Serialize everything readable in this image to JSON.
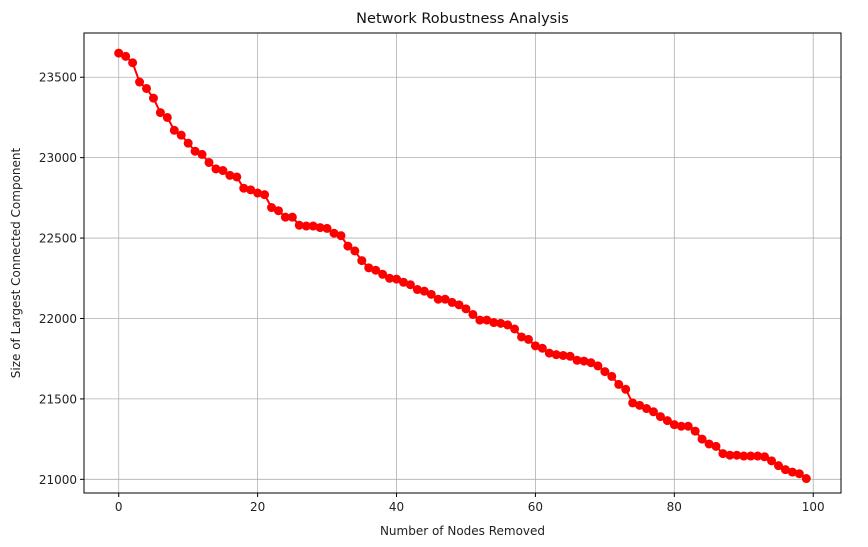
{
  "chart_data": {
    "type": "line",
    "title": "Network Robustness Analysis",
    "xlabel": "Number of Nodes Removed",
    "ylabel": "Size of Largest Connected Component",
    "xlim": [
      -5,
      104
    ],
    "ylim": [
      20915,
      23775
    ],
    "xticks": [
      0,
      20,
      40,
      60,
      80,
      100
    ],
    "yticks": [
      21000,
      21500,
      22000,
      22500,
      23000,
      23500
    ],
    "grid": true,
    "color": "#ff0000",
    "marker": "circle",
    "x": [
      0,
      1,
      2,
      3,
      4,
      5,
      6,
      7,
      8,
      9,
      10,
      11,
      12,
      13,
      14,
      15,
      16,
      17,
      18,
      19,
      20,
      21,
      22,
      23,
      24,
      25,
      26,
      27,
      28,
      29,
      30,
      31,
      32,
      33,
      34,
      35,
      36,
      37,
      38,
      39,
      40,
      41,
      42,
      43,
      44,
      45,
      46,
      47,
      48,
      49,
      50,
      51,
      52,
      53,
      54,
      55,
      56,
      57,
      58,
      59,
      60,
      61,
      62,
      63,
      64,
      65,
      66,
      67,
      68,
      69,
      70,
      71,
      72,
      73,
      74,
      75,
      76,
      77,
      78,
      79,
      80,
      81,
      82,
      83,
      84,
      85,
      86,
      87,
      88,
      89,
      90,
      91,
      92,
      93,
      94,
      95,
      96,
      97,
      98,
      99
    ],
    "y": [
      23650,
      23630,
      23590,
      23470,
      23430,
      23370,
      23280,
      23250,
      23170,
      23140,
      23090,
      23040,
      23020,
      22970,
      22930,
      22920,
      22890,
      22880,
      22810,
      22800,
      22780,
      22770,
      22690,
      22670,
      22630,
      22630,
      22580,
      22575,
      22575,
      22565,
      22560,
      22530,
      22515,
      22450,
      22420,
      22360,
      22315,
      22300,
      22275,
      22250,
      22245,
      22225,
      22210,
      22180,
      22170,
      22150,
      22120,
      22120,
      22100,
      22085,
      22060,
      22025,
      21990,
      21990,
      21975,
      21970,
      21960,
      21935,
      21885,
      21870,
      21830,
      21815,
      21785,
      21775,
      21770,
      21765,
      21740,
      21735,
      21725,
      21705,
      21670,
      21640,
      21590,
      21560,
      21475,
      21460,
      21440,
      21420,
      21390,
      21365,
      21340,
      21330,
      21330,
      21300,
      21250,
      21220,
      21205,
      21160,
      21150,
      21150,
      21145,
      21145,
      21145,
      21140,
      21115,
      21085,
      21060,
      21045,
      21035,
      21005
    ]
  }
}
